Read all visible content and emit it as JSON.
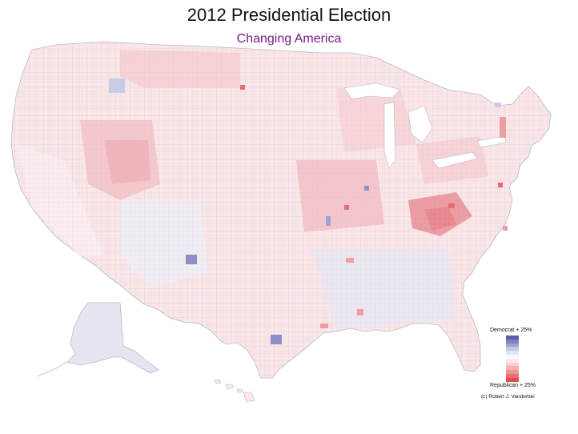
{
  "title": "2012 Presidential Election",
  "subtitle": "Changing America",
  "subtitle_color": "#7a1b87",
  "legend": {
    "top_label": "Democrat + 25%",
    "bottom_label": "Republican + 25%",
    "scale_colors": [
      "#5b5ea8",
      "#7f82c0",
      "#a0a3d2",
      "#c5c7e4",
      "#e4e5f2",
      "#f7f7fb",
      "#fbeaea",
      "#f7cfd0",
      "#f2b1b3",
      "#ee9295",
      "#ea6f74",
      "#e4494f"
    ]
  },
  "copyright": "(c) Robert J. Vanderbei",
  "map_colors": {
    "rep_light": "#fbe4e6",
    "rep_mid": "#f5c3c8",
    "rep_strong": "#ee9da4",
    "rep_deep": "#e46c74",
    "neutral": "#fdf6f7",
    "dem_light": "#e6e6f3",
    "dem_mid": "#c9cae6",
    "dem_strong": "#8d8fc6",
    "county_lines": "#c9c9d2"
  }
}
